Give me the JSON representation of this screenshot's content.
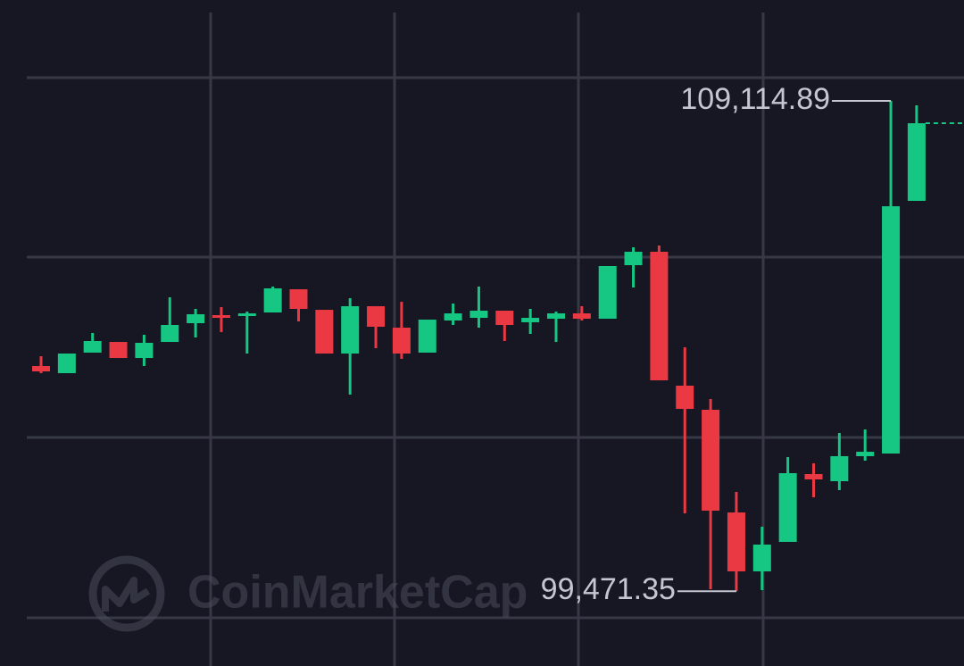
{
  "chart_data": {
    "type": "candlestick",
    "watermark": "CoinMarketCap",
    "categories": [
      null,
      null,
      null,
      null,
      null,
      null,
      null,
      null,
      null,
      null,
      null,
      null,
      null,
      null,
      null,
      null,
      null,
      null,
      null,
      null,
      null,
      null,
      null,
      null,
      null,
      null,
      null,
      null,
      null,
      null,
      null,
      null,
      null,
      null,
      null
    ],
    "open": [
      103900,
      103760,
      104164,
      104374,
      104058,
      104374,
      104743,
      104901,
      104884,
      104954,
      105410,
      105006,
      104146,
      105077,
      104655,
      104164,
      104796,
      104848,
      104989,
      104761,
      104831,
      104936,
      104831,
      105884,
      106148,
      103514,
      103040,
      101020,
      99861,
      100441,
      101775,
      101635,
      102127,
      102179,
      107149
    ],
    "high": [
      104093,
      104146,
      104550,
      104374,
      104515,
      105252,
      105024,
      105059,
      104971,
      105463,
      105410,
      105006,
      105235,
      105077,
      105164,
      104813,
      105129,
      105463,
      104989,
      105024,
      104971,
      105077,
      105867,
      106236,
      106271,
      104269,
      103250,
      101424,
      100739,
      102109,
      101986,
      102583,
      102653,
      109114.89,
      109028
    ],
    "low": [
      103760,
      103760,
      104164,
      104058,
      103900,
      104374,
      104462,
      104567,
      104146,
      104954,
      104778,
      104146,
      103338,
      104251,
      104041,
      104164,
      104708,
      104655,
      104392,
      104532,
      104374,
      104796,
      104831,
      105445,
      103619,
      101003,
      99510,
      99471.35,
      99493,
      100441,
      101319,
      101459,
      102039,
      102179,
      107149
    ],
    "close": [
      103795,
      104146,
      104392,
      104058,
      104357,
      104708,
      104919,
      104848,
      104936,
      105428,
      105024,
      104146,
      105077,
      104673,
      104146,
      104813,
      104936,
      104989,
      104708,
      104848,
      104936,
      104831,
      105867,
      106148,
      103619,
      103057,
      101055,
      99861,
      100388,
      101793,
      101670,
      102127,
      102214,
      107043,
      108676
    ],
    "up_color": "#16c784",
    "down_color": "#ea3943",
    "ylim": [
      98000,
      111100
    ],
    "annotations": [
      {
        "text": "109,114.89",
        "value": 109114.89,
        "index": 33
      },
      {
        "text": "99,471.35",
        "value": 99471.35,
        "index": 27
      }
    ]
  }
}
